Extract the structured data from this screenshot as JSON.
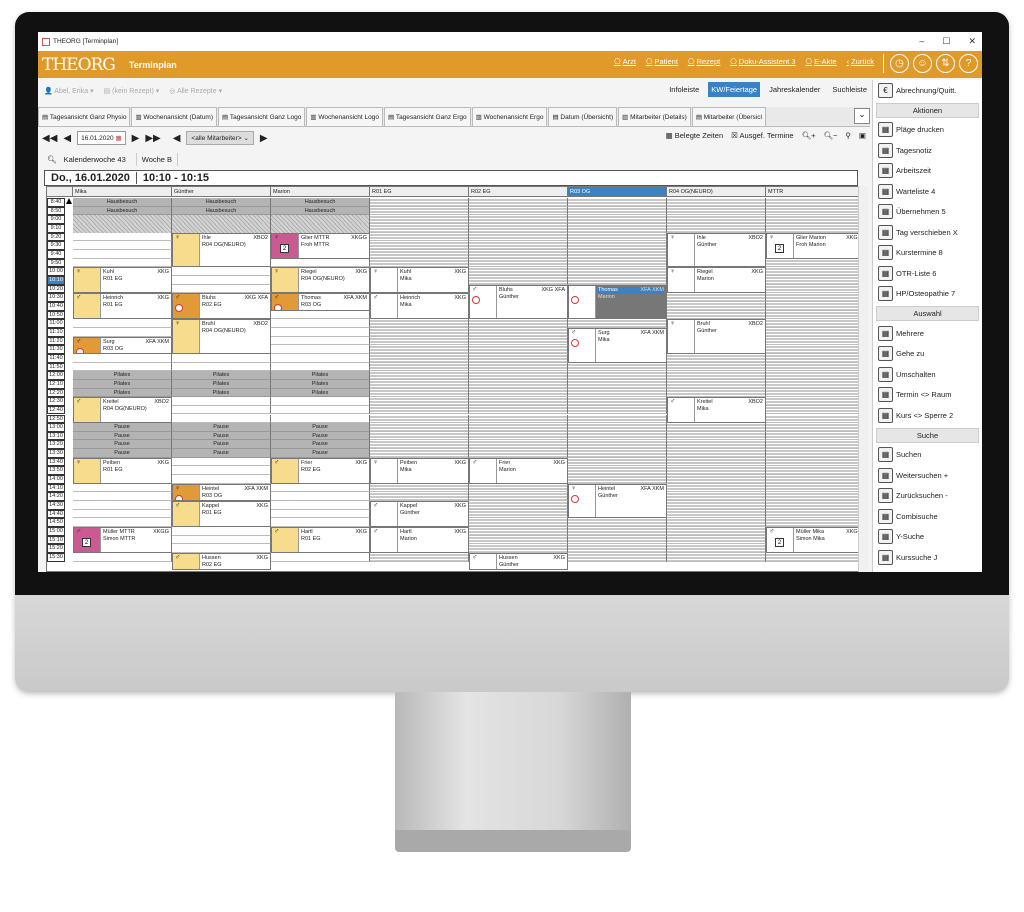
{
  "window": {
    "title": "THEORG [Terminplan]",
    "min": "–",
    "max": "☐",
    "close": "✕"
  },
  "header": {
    "logo": "THEORG",
    "title": "Terminplan",
    "nav": [
      {
        "label": "Arzt",
        "icon": "doctor-add-icon"
      },
      {
        "label": "Patient",
        "icon": "patient-icon"
      },
      {
        "label": "Rezept",
        "icon": "prescription-icon"
      },
      {
        "label": "Doku-Assistent 3",
        "icon": "doku-assistant-icon"
      },
      {
        "label": "E-Akte",
        "icon": "folder-icon"
      },
      {
        "label": "Zurück",
        "icon": "chevron-left-icon"
      }
    ],
    "round_icons": [
      {
        "icon": "clock-icon",
        "glyph": "◷"
      },
      {
        "icon": "user-support-icon",
        "glyph": "☺"
      },
      {
        "icon": "settings-sliders-icon",
        "glyph": "⇅"
      },
      {
        "icon": "help-icon",
        "glyph": "?"
      }
    ]
  },
  "patientbar": {
    "patient": "Abel, Erika",
    "prescription": "(kein Rezept)",
    "all_prescriptions": "Alle Rezepte",
    "toggles": [
      {
        "label": "Infoleiste",
        "active": false
      },
      {
        "label": "KW/Feiertage",
        "active": true
      },
      {
        "label": "Jahreskalender",
        "active": false
      },
      {
        "label": "Suchleiste",
        "active": false
      }
    ]
  },
  "tabs": [
    "Tagesansicht Ganz Physio",
    "Wochenansicht (Datum)",
    "Tagesansicht Ganz Logo",
    "Wochenansicht Logo",
    "Tagesansicht Ganz Ergo",
    "Wochenansicht Ergo",
    "Datum (Übersicht)",
    "Mitarbeiter (Details)",
    "Mitarbeiter (Übersicl"
  ],
  "navrow": {
    "date": "16.01.2020",
    "employee_filter": "<alle Mitarbeiter>",
    "belegte": "Belegte Zeiten",
    "ausgef": "Ausgef. Termine"
  },
  "kw": {
    "week": "Kalenderwoche 43",
    "woche": "Woche B"
  },
  "dayheader": {
    "date": "Do., 16.01.2020",
    "time": "10:10 - 10:15"
  },
  "colors": {
    "accent": "#e09a2a",
    "selection": "#3b82c4",
    "yellow": "#f7dc8e",
    "orange": "#e29a38",
    "pink": "#cc5a92"
  },
  "schedule": {
    "columns": [
      {
        "label": "Mika",
        "kind": "staff"
      },
      {
        "label": "Günther",
        "kind": "staff"
      },
      {
        "label": "Marion",
        "kind": "staff"
      },
      {
        "label": "R01 EG",
        "kind": "room"
      },
      {
        "label": "R02 EG",
        "kind": "room"
      },
      {
        "label": "R03 OG",
        "kind": "room",
        "selected": true
      },
      {
        "label": "R04 OG(NEURO)",
        "kind": "room"
      },
      {
        "label": "MTTR",
        "kind": "room"
      }
    ],
    "times": [
      "8:40",
      "8:50",
      "9:00",
      "9:10",
      "9:20",
      "9:30",
      "9:40",
      "9:50",
      "10:00",
      "10:10",
      "10:20",
      "10:30",
      "10:40",
      "10:50",
      "11:00",
      "11:10",
      "11:20",
      "11:30",
      "11:40",
      "11:50",
      "12:00",
      "12:10",
      "12:20",
      "12:30",
      "12:40",
      "12:50",
      "13:00",
      "13:10",
      "13:20",
      "13:30",
      "13:40",
      "13:50",
      "14:00",
      "14:10",
      "14:20",
      "14:30",
      "14:40",
      "14:50",
      "15:00",
      "15:10",
      "15:20",
      "15:30"
    ],
    "current_time": "10:10",
    "blocks": [
      {
        "label": "Hausbesuch",
        "rows": [
          0,
          1
        ]
      },
      {
        "label": "",
        "rows": [
          2,
          3
        ],
        "hatched": true
      },
      {
        "label": "Pilates",
        "rows": [
          20,
          21,
          22
        ]
      },
      {
        "label": "Pause",
        "rows": [
          26,
          27,
          28,
          29
        ]
      }
    ],
    "appointments": [
      {
        "col": 0,
        "row": 8,
        "span": 3,
        "lines": [
          "Kuhl",
          "R01 EG"
        ],
        "code": "XKG",
        "gender": "female",
        "tile": "yellow"
      },
      {
        "col": 0,
        "row": 11,
        "span": 3,
        "lines": [
          "Heinrich",
          "R01 EG"
        ],
        "code": "XKG",
        "gender": "male",
        "tile": "yellow"
      },
      {
        "col": 0,
        "row": 16,
        "span": 2,
        "lines": [
          "Surg",
          "R03 OG"
        ],
        "code": "XFA XKM",
        "gender": "male",
        "tile": "orange",
        "clock": true
      },
      {
        "col": 0,
        "row": 23,
        "span": 3,
        "lines": [
          "Kreitel",
          "R04 OG(NEURO)"
        ],
        "code": "XBO2",
        "gender": "male",
        "tile": "yellow"
      },
      {
        "col": 0,
        "row": 30,
        "span": 3,
        "lines": [
          "Peiben",
          "R01 EG"
        ],
        "code": "XKG",
        "gender": "female",
        "tile": "yellow"
      },
      {
        "col": 0,
        "row": 38,
        "span": 3,
        "lines": [
          "Müller MTTR",
          "Simon MTTR"
        ],
        "code": "XKGG",
        "gender": "male",
        "tile": "pink",
        "badge": "2"
      },
      {
        "col": 1,
        "row": 4,
        "span": 4,
        "lines": [
          "Ihle",
          "R04 OG(NEURO)"
        ],
        "code": "XBO2",
        "gender": "female",
        "tile": "yellow"
      },
      {
        "col": 1,
        "row": 11,
        "span": 3,
        "lines": [
          "Bluhs",
          "R02 EG"
        ],
        "code": "XKG XFA",
        "gender": "male",
        "tile": "orange",
        "clock": true
      },
      {
        "col": 1,
        "row": 14,
        "span": 4,
        "lines": [
          "Bruhl",
          "R04 OG(NEURO)"
        ],
        "code": "XBO2",
        "gender": "female",
        "tile": "yellow"
      },
      {
        "col": 1,
        "row": 33,
        "span": 2,
        "lines": [
          "Heintel",
          "R03 OG"
        ],
        "code": "XFA XKM",
        "gender": "female",
        "tile": "orange",
        "clock": true
      },
      {
        "col": 1,
        "row": 35,
        "span": 3,
        "lines": [
          "Kappel",
          "R01 EG"
        ],
        "code": "XKG",
        "gender": "male",
        "tile": "yellow"
      },
      {
        "col": 1,
        "row": 41,
        "span": 2,
        "lines": [
          "Hussen",
          "R02 EG"
        ],
        "code": "XKG",
        "gender": "male",
        "tile": "yellow"
      },
      {
        "col": 2,
        "row": 4,
        "span": 3,
        "lines": [
          "Glier MTTR",
          "Froh MTTR"
        ],
        "code": "XKGG",
        "gender": "female",
        "tile": "pink",
        "badge": "2"
      },
      {
        "col": 2,
        "row": 8,
        "span": 3,
        "lines": [
          "Riegel",
          "R04 OG(NEURO)"
        ],
        "code": "XKG",
        "gender": "female",
        "tile": "yellow"
      },
      {
        "col": 2,
        "row": 11,
        "span": 2,
        "lines": [
          "Thomas",
          "R03 OG"
        ],
        "code": "XFA XKM",
        "gender": "male",
        "tile": "orange",
        "clock": true
      },
      {
        "col": 2,
        "row": 30,
        "span": 3,
        "lines": [
          "Frier",
          "R02 EG"
        ],
        "code": "XKG",
        "gender": "male",
        "tile": "yellow"
      },
      {
        "col": 2,
        "row": 38,
        "span": 3,
        "lines": [
          "Hartl",
          "R01 EG"
        ],
        "code": "XKG",
        "gender": "male",
        "tile": "yellow"
      },
      {
        "col": 3,
        "row": 8,
        "span": 3,
        "lines": [
          "Kuhl",
          "Mika"
        ],
        "code": "XKG",
        "gender": "female",
        "tile": "white"
      },
      {
        "col": 3,
        "row": 11,
        "span": 3,
        "lines": [
          "Heinrich",
          "Mika"
        ],
        "code": "XKG",
        "gender": "male",
        "tile": "white"
      },
      {
        "col": 3,
        "row": 30,
        "span": 3,
        "lines": [
          "Peiben",
          "Mika"
        ],
        "code": "XKG",
        "gender": "female",
        "tile": "white"
      },
      {
        "col": 3,
        "row": 35,
        "span": 3,
        "lines": [
          "Kappel",
          "Günther"
        ],
        "code": "XKG",
        "gender": "male",
        "tile": "white"
      },
      {
        "col": 3,
        "row": 38,
        "span": 3,
        "lines": [
          "Hartl",
          "Marion"
        ],
        "code": "XKG",
        "gender": "male",
        "tile": "white"
      },
      {
        "col": 4,
        "row": 10,
        "span": 4,
        "lines": [
          "Bluhs",
          "Günther"
        ],
        "code": "XKG XFA",
        "gender": "male",
        "tile": "white",
        "clock": true
      },
      {
        "col": 4,
        "row": 30,
        "span": 3,
        "lines": [
          "Frier",
          "Marion"
        ],
        "code": "XKG",
        "gender": "male",
        "tile": "white"
      },
      {
        "col": 4,
        "row": 41,
        "span": 2,
        "lines": [
          "Hussen",
          "Günther"
        ],
        "code": "XKG",
        "gender": "male",
        "tile": "white"
      },
      {
        "col": 5,
        "row": 10,
        "span": 4,
        "lines": [
          "Thomas",
          "Marion"
        ],
        "code": "XFA XKM",
        "gender": "male",
        "tile": "white",
        "clock": true,
        "selected": true
      },
      {
        "col": 5,
        "row": 15,
        "span": 4,
        "lines": [
          "Surg",
          "Mika"
        ],
        "code": "XFA XKM",
        "gender": "male",
        "tile": "white",
        "clock": true
      },
      {
        "col": 5,
        "row": 33,
        "span": 4,
        "lines": [
          "Heintel",
          "Günther"
        ],
        "code": "XFA XKM",
        "gender": "female",
        "tile": "white",
        "clock": true
      },
      {
        "col": 6,
        "row": 4,
        "span": 4,
        "lines": [
          "Ihle",
          "Günther"
        ],
        "code": "XBO2",
        "gender": "female",
        "tile": "white"
      },
      {
        "col": 6,
        "row": 8,
        "span": 3,
        "lines": [
          "Riegel",
          "Marion"
        ],
        "code": "XKG",
        "gender": "female",
        "tile": "white"
      },
      {
        "col": 6,
        "row": 14,
        "span": 4,
        "lines": [
          "Bruhl",
          "Günther"
        ],
        "code": "XBO2",
        "gender": "female",
        "tile": "white"
      },
      {
        "col": 6,
        "row": 23,
        "span": 3,
        "lines": [
          "Kreitel",
          "Mika"
        ],
        "code": "XBO2",
        "gender": "male",
        "tile": "white"
      },
      {
        "col": 7,
        "row": 4,
        "span": 3,
        "lines": [
          "Glier Marion",
          "Froh Marion"
        ],
        "code": "XKGG",
        "gender": "female",
        "tile": "white",
        "badge": "2"
      },
      {
        "col": 7,
        "row": 38,
        "span": 3,
        "lines": [
          "Müller Mika",
          "Simon Mika"
        ],
        "code": "XKGG",
        "gender": "male",
        "tile": "white",
        "badge": "2"
      }
    ]
  },
  "sidebar": {
    "top": {
      "label": "Abrechnung/Quitt.",
      "icon": "billing-icon"
    },
    "sections": [
      {
        "title": "Aktionen",
        "items": [
          {
            "label": "Pläge drucken",
            "icon": "print-icon"
          },
          {
            "label": "Tagesnotiz",
            "icon": "note-icon"
          },
          {
            "label": "Arbeitszeit",
            "icon": "clock-icon"
          },
          {
            "label": "Warteliste 4",
            "icon": "waitlist-icon"
          },
          {
            "label": "Übernehmen 5",
            "icon": "take-over-icon"
          },
          {
            "label": "Tag verschieben X",
            "icon": "move-day-icon"
          },
          {
            "label": "Kurstermine 8",
            "icon": "course-icon"
          },
          {
            "label": "OTR-Liste 6",
            "icon": "otr-list-icon"
          },
          {
            "label": "HP/Osteopathie 7",
            "icon": "osteopathy-icon"
          }
        ]
      },
      {
        "title": "Auswahl",
        "items": [
          {
            "label": "Mehrere",
            "icon": "multi-select-icon"
          },
          {
            "label": "Gehe zu",
            "icon": "goto-icon"
          },
          {
            "label": "Umschalten",
            "icon": "switch-icon"
          },
          {
            "label": "Termin <> Raum",
            "icon": "room-swap-icon"
          },
          {
            "label": "Kurs <> Sperre 2",
            "icon": "block-swap-icon"
          }
        ]
      },
      {
        "title": "Suche",
        "items": [
          {
            "label": "Suchen",
            "icon": "search-icon"
          },
          {
            "label": "Weitersuchen +",
            "icon": "search-next-icon"
          },
          {
            "label": "Zurücksuchen -",
            "icon": "search-prev-icon"
          },
          {
            "label": "Combisuche",
            "icon": "combi-search-icon"
          },
          {
            "label": "Y-Suche",
            "icon": "y-search-icon"
          },
          {
            "label": "Kurssuche J",
            "icon": "course-search-icon"
          }
        ]
      }
    ]
  }
}
